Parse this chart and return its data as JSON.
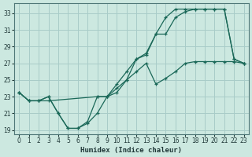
{
  "title": "",
  "xlabel": "Humidex (Indice chaleur)",
  "bg_color": "#cce8e0",
  "grid_color": "#a8ccc8",
  "line_color": "#1a6858",
  "xlim": [
    -0.5,
    23.5
  ],
  "ylim": [
    18.5,
    34.2
  ],
  "xticks": [
    0,
    1,
    2,
    3,
    4,
    5,
    6,
    7,
    8,
    9,
    10,
    11,
    12,
    13,
    14,
    15,
    16,
    17,
    18,
    19,
    20,
    21,
    22,
    23
  ],
  "yticks": [
    19,
    21,
    23,
    25,
    27,
    29,
    31,
    33
  ],
  "line1_x": [
    0,
    1,
    2,
    3,
    4,
    5,
    6,
    7,
    8,
    9,
    10,
    11,
    12,
    13,
    14,
    15,
    16,
    17,
    18,
    19,
    20,
    21,
    22,
    23
  ],
  "line1_y": [
    23.5,
    22.5,
    22.5,
    23.0,
    21.0,
    19.2,
    19.2,
    20.0,
    23.0,
    23.0,
    23.5,
    25.0,
    27.5,
    28.0,
    30.5,
    32.5,
    33.5,
    33.5,
    33.5,
    33.5,
    33.5,
    33.5,
    27.5,
    27.0
  ],
  "line2_x": [
    0,
    1,
    2,
    3,
    8,
    9,
    10,
    11,
    12,
    13,
    14,
    15,
    16,
    17,
    18,
    19,
    20,
    21,
    22,
    23
  ],
  "line2_y": [
    23.5,
    22.5,
    22.5,
    22.5,
    23.0,
    23.0,
    24.5,
    26.0,
    27.5,
    28.2,
    30.5,
    30.5,
    32.5,
    33.2,
    33.5,
    33.5,
    33.5,
    33.5,
    27.5,
    27.0
  ],
  "line3_x": [
    0,
    1,
    2,
    3,
    4,
    5,
    6,
    7,
    8,
    9,
    10,
    11,
    12,
    13,
    14,
    15,
    16,
    17,
    18,
    19,
    20,
    21,
    22,
    23
  ],
  "line3_y": [
    23.5,
    22.5,
    22.5,
    23.0,
    21.0,
    19.2,
    19.2,
    19.8,
    21.0,
    23.0,
    24.0,
    25.0,
    26.0,
    27.0,
    24.5,
    25.2,
    26.0,
    27.0,
    27.2,
    27.2,
    27.2,
    27.2,
    27.2,
    27.0
  ]
}
